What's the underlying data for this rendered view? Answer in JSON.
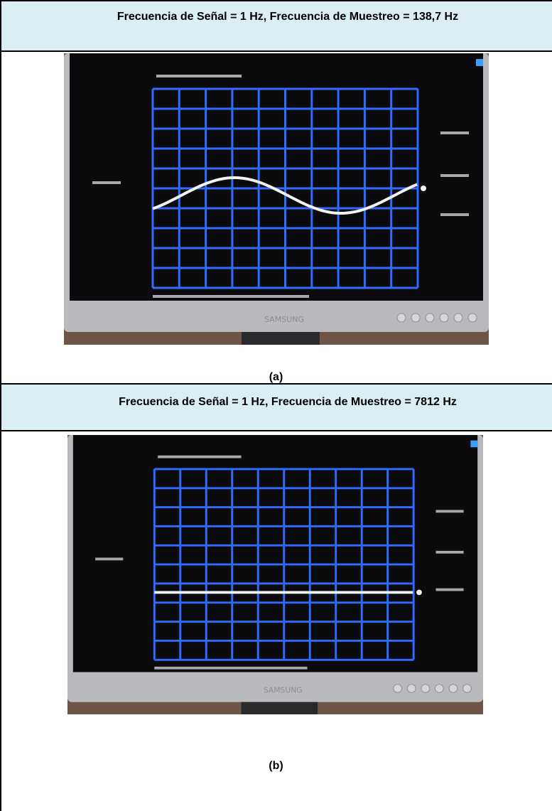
{
  "rows": [
    {
      "title": "Frecuencia de Señal = 1 Hz, Frecuencia de Muestreo = 138,7 Hz",
      "caption": "(a)"
    },
    {
      "title": "Frecuencia de Señal = 1 Hz, Frecuencia de Muestreo = 7812 Hz",
      "caption": "(b)"
    }
  ],
  "monitor_brand": "SAMSUNG"
}
